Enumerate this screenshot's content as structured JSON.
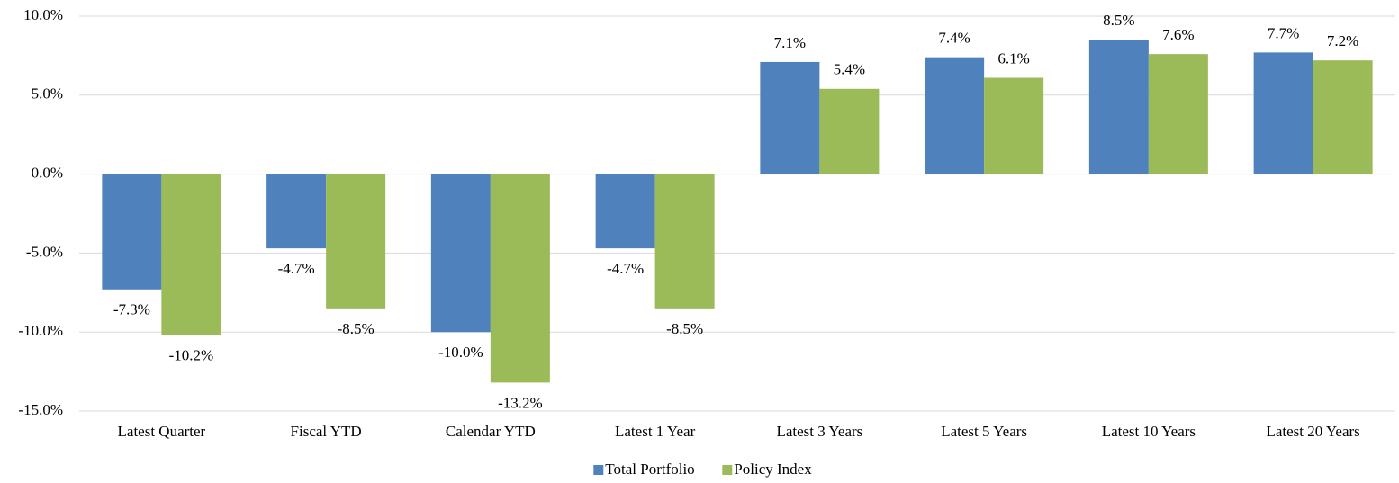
{
  "chart_data": {
    "type": "bar",
    "categories": [
      "Latest Quarter",
      "Fiscal YTD",
      "Calendar YTD",
      "Latest 1 Year",
      "Latest 3 Years",
      "Latest 5 Years",
      "Latest 10 Years",
      "Latest 20 Years"
    ],
    "series": [
      {
        "name": "Total Portfolio",
        "color": "#4f81bd",
        "values": [
          -7.3,
          -4.7,
          -10.0,
          -4.7,
          7.1,
          7.4,
          8.5,
          7.7
        ],
        "value_labels": [
          "-7.3%",
          "-4.7%",
          "-10.0%",
          "-4.7%",
          "7.1%",
          "7.4%",
          "8.5%",
          "7.7%"
        ]
      },
      {
        "name": "Policy Index",
        "color": "#9bbb59",
        "values": [
          -10.2,
          -8.5,
          -13.2,
          -8.5,
          5.4,
          6.1,
          7.6,
          7.2
        ],
        "value_labels": [
          "-10.2%",
          "-8.5%",
          "-13.2%",
          "-8.5%",
          "5.4%",
          "6.1%",
          "7.6%",
          "7.2%"
        ]
      }
    ],
    "ylim": [
      -15,
      10
    ],
    "yticks": [
      {
        "value": 10,
        "label": "10.0%"
      },
      {
        "value": 5,
        "label": "5.0%"
      },
      {
        "value": 0,
        "label": "0.0%"
      },
      {
        "value": -5,
        "label": "-5.0%"
      },
      {
        "value": -10,
        "label": "-10.0%"
      },
      {
        "value": -15,
        "label": "-15.0%"
      }
    ],
    "grid": true,
    "legend": "bottom"
  }
}
